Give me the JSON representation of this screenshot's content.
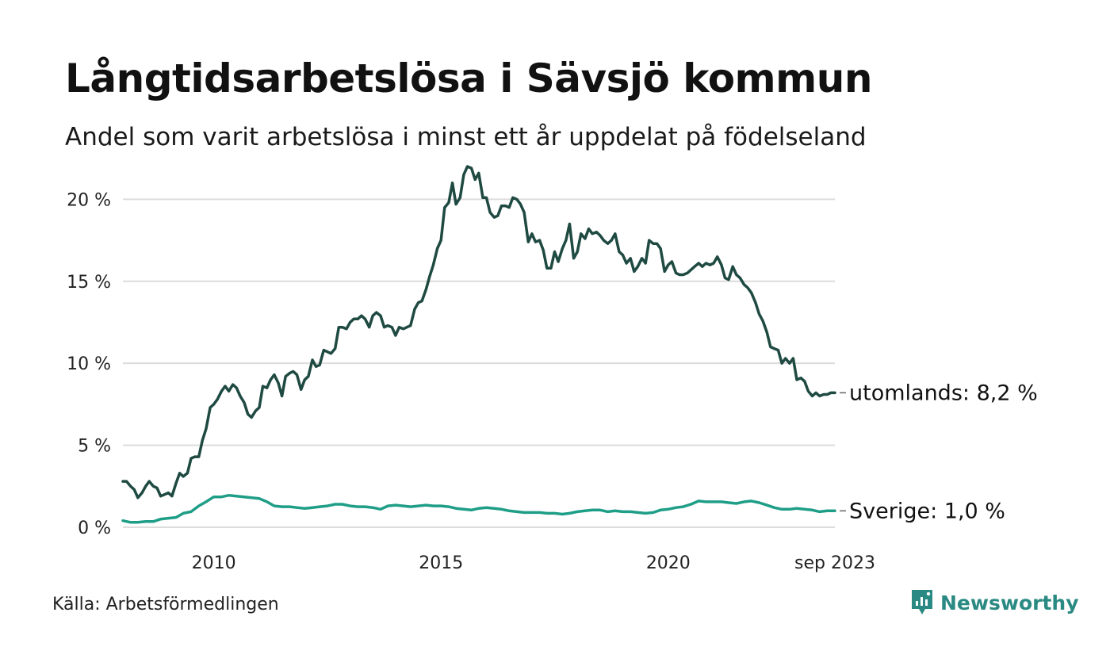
{
  "header": {
    "title": "Långtidsarbetslösa i Sävsjö kommun",
    "subtitle": "Andel som varit arbetslösa i minst ett år uppdelat på födelseland"
  },
  "footer": {
    "source": "Källa: Arbetsförmedlingen",
    "brand": "Newsworthy",
    "brand_color": "#2a8a83"
  },
  "chart_data": {
    "type": "line",
    "title": "Långtidsarbetslösa i Sävsjö kommun",
    "subtitle": "Andel som varit arbetslösa i minst ett år uppdelat på födelseland",
    "xlabel": "",
    "ylabel": "",
    "x_start": 2008.0,
    "x_end": 2023.667,
    "x_ticks": [
      {
        "value": 2010,
        "label": "2010"
      },
      {
        "value": 2015,
        "label": "2015"
      },
      {
        "value": 2020,
        "label": "2020"
      },
      {
        "value": 2023.667,
        "label": "sep 2023"
      }
    ],
    "ylim": [
      0,
      22
    ],
    "y_ticks": [
      {
        "value": 0,
        "label": "0 %"
      },
      {
        "value": 5,
        "label": "5 %"
      },
      {
        "value": 10,
        "label": "10 %"
      },
      {
        "value": 15,
        "label": "15 %"
      },
      {
        "value": 20,
        "label": "20 %"
      }
    ],
    "grid": true,
    "series": [
      {
        "name": "utomlands",
        "end_label": "utomlands: 8,2 %",
        "color": "#1f4a42",
        "points": [
          [
            2008.0,
            2.8
          ],
          [
            2008.08,
            2.8
          ],
          [
            2008.17,
            2.5
          ],
          [
            2008.25,
            2.3
          ],
          [
            2008.33,
            1.8
          ],
          [
            2008.42,
            2.1
          ],
          [
            2008.5,
            2.5
          ],
          [
            2008.58,
            2.8
          ],
          [
            2008.67,
            2.5
          ],
          [
            2008.75,
            2.4
          ],
          [
            2008.83,
            1.9
          ],
          [
            2008.92,
            2.0
          ],
          [
            2009.0,
            2.1
          ],
          [
            2009.08,
            1.9
          ],
          [
            2009.17,
            2.7
          ],
          [
            2009.25,
            3.3
          ],
          [
            2009.33,
            3.1
          ],
          [
            2009.42,
            3.3
          ],
          [
            2009.5,
            4.2
          ],
          [
            2009.58,
            4.3
          ],
          [
            2009.67,
            4.3
          ],
          [
            2009.75,
            5.3
          ],
          [
            2009.83,
            6.0
          ],
          [
            2009.92,
            7.3
          ],
          [
            2010.0,
            7.5
          ],
          [
            2010.08,
            7.8
          ],
          [
            2010.17,
            8.3
          ],
          [
            2010.25,
            8.6
          ],
          [
            2010.33,
            8.3
          ],
          [
            2010.42,
            8.7
          ],
          [
            2010.5,
            8.5
          ],
          [
            2010.58,
            8.0
          ],
          [
            2010.67,
            7.6
          ],
          [
            2010.75,
            6.9
          ],
          [
            2010.83,
            6.7
          ],
          [
            2010.92,
            7.1
          ],
          [
            2011.0,
            7.3
          ],
          [
            2011.08,
            8.6
          ],
          [
            2011.17,
            8.5
          ],
          [
            2011.25,
            9.0
          ],
          [
            2011.33,
            9.3
          ],
          [
            2011.42,
            8.8
          ],
          [
            2011.5,
            8.0
          ],
          [
            2011.58,
            9.2
          ],
          [
            2011.67,
            9.4
          ],
          [
            2011.75,
            9.5
          ],
          [
            2011.83,
            9.3
          ],
          [
            2011.92,
            8.4
          ],
          [
            2012.0,
            9.0
          ],
          [
            2012.08,
            9.2
          ],
          [
            2012.17,
            10.2
          ],
          [
            2012.25,
            9.8
          ],
          [
            2012.33,
            9.9
          ],
          [
            2012.42,
            10.8
          ],
          [
            2012.5,
            10.7
          ],
          [
            2012.58,
            10.6
          ],
          [
            2012.67,
            10.9
          ],
          [
            2012.75,
            12.2
          ],
          [
            2012.83,
            12.2
          ],
          [
            2012.92,
            12.1
          ],
          [
            2013.0,
            12.5
          ],
          [
            2013.08,
            12.7
          ],
          [
            2013.17,
            12.7
          ],
          [
            2013.25,
            12.9
          ],
          [
            2013.33,
            12.7
          ],
          [
            2013.42,
            12.2
          ],
          [
            2013.5,
            12.9
          ],
          [
            2013.58,
            13.1
          ],
          [
            2013.67,
            12.9
          ],
          [
            2013.75,
            12.2
          ],
          [
            2013.83,
            12.3
          ],
          [
            2013.92,
            12.2
          ],
          [
            2014.0,
            11.7
          ],
          [
            2014.08,
            12.2
          ],
          [
            2014.17,
            12.1
          ],
          [
            2014.25,
            12.2
          ],
          [
            2014.33,
            12.3
          ],
          [
            2014.42,
            13.3
          ],
          [
            2014.5,
            13.7
          ],
          [
            2014.58,
            13.8
          ],
          [
            2014.67,
            14.5
          ],
          [
            2014.75,
            15.3
          ],
          [
            2014.83,
            16.0
          ],
          [
            2014.92,
            17.0
          ],
          [
            2015.0,
            17.5
          ],
          [
            2015.08,
            19.5
          ],
          [
            2015.17,
            19.8
          ],
          [
            2015.25,
            21.0
          ],
          [
            2015.33,
            19.7
          ],
          [
            2015.42,
            20.1
          ],
          [
            2015.5,
            21.5
          ],
          [
            2015.58,
            22.0
          ],
          [
            2015.67,
            21.9
          ],
          [
            2015.75,
            21.2
          ],
          [
            2015.83,
            21.6
          ],
          [
            2015.92,
            20.1
          ],
          [
            2016.0,
            20.1
          ],
          [
            2016.08,
            19.2
          ],
          [
            2016.17,
            18.9
          ],
          [
            2016.25,
            19.0
          ],
          [
            2016.33,
            19.6
          ],
          [
            2016.42,
            19.6
          ],
          [
            2016.5,
            19.5
          ],
          [
            2016.58,
            20.1
          ],
          [
            2016.67,
            20.0
          ],
          [
            2016.75,
            19.7
          ],
          [
            2016.83,
            19.2
          ],
          [
            2016.92,
            17.4
          ],
          [
            2017.0,
            17.9
          ],
          [
            2017.08,
            17.4
          ],
          [
            2017.17,
            17.5
          ],
          [
            2017.25,
            16.9
          ],
          [
            2017.33,
            15.8
          ],
          [
            2017.42,
            15.8
          ],
          [
            2017.5,
            16.8
          ],
          [
            2017.58,
            16.2
          ],
          [
            2017.67,
            17.0
          ],
          [
            2017.75,
            17.5
          ],
          [
            2017.83,
            18.5
          ],
          [
            2017.92,
            16.4
          ],
          [
            2018.0,
            16.8
          ],
          [
            2018.08,
            17.9
          ],
          [
            2018.17,
            17.6
          ],
          [
            2018.25,
            18.2
          ],
          [
            2018.33,
            17.9
          ],
          [
            2018.42,
            18.0
          ],
          [
            2018.5,
            17.8
          ],
          [
            2018.58,
            17.5
          ],
          [
            2018.67,
            17.3
          ],
          [
            2018.75,
            17.5
          ],
          [
            2018.83,
            17.9
          ],
          [
            2018.92,
            16.8
          ],
          [
            2019.0,
            16.6
          ],
          [
            2019.08,
            16.1
          ],
          [
            2019.17,
            16.4
          ],
          [
            2019.25,
            15.6
          ],
          [
            2019.33,
            15.9
          ],
          [
            2019.42,
            16.4
          ],
          [
            2019.5,
            16.1
          ],
          [
            2019.58,
            17.5
          ],
          [
            2019.67,
            17.3
          ],
          [
            2019.75,
            17.3
          ],
          [
            2019.83,
            17.0
          ],
          [
            2019.92,
            15.6
          ],
          [
            2020.0,
            16.0
          ],
          [
            2020.08,
            16.2
          ],
          [
            2020.17,
            15.5
          ],
          [
            2020.25,
            15.4
          ],
          [
            2020.33,
            15.4
          ],
          [
            2020.42,
            15.5
          ],
          [
            2020.5,
            15.7
          ],
          [
            2020.58,
            15.9
          ],
          [
            2020.67,
            16.1
          ],
          [
            2020.75,
            15.9
          ],
          [
            2020.83,
            16.1
          ],
          [
            2020.92,
            16.0
          ],
          [
            2021.0,
            16.1
          ],
          [
            2021.08,
            16.5
          ],
          [
            2021.17,
            16.0
          ],
          [
            2021.25,
            15.2
          ],
          [
            2021.33,
            15.1
          ],
          [
            2021.42,
            15.9
          ],
          [
            2021.5,
            15.4
          ],
          [
            2021.58,
            15.2
          ],
          [
            2021.67,
            14.8
          ],
          [
            2021.75,
            14.6
          ],
          [
            2021.83,
            14.3
          ],
          [
            2021.92,
            13.7
          ],
          [
            2022.0,
            13.0
          ],
          [
            2022.08,
            12.6
          ],
          [
            2022.17,
            11.9
          ],
          [
            2022.25,
            11.0
          ],
          [
            2022.33,
            10.9
          ],
          [
            2022.42,
            10.8
          ],
          [
            2022.5,
            10.0
          ],
          [
            2022.58,
            10.3
          ],
          [
            2022.67,
            10.0
          ],
          [
            2022.75,
            10.3
          ],
          [
            2022.83,
            9.0
          ],
          [
            2022.92,
            9.1
          ],
          [
            2023.0,
            8.9
          ],
          [
            2023.08,
            8.3
          ],
          [
            2023.17,
            8.0
          ],
          [
            2023.25,
            8.2
          ],
          [
            2023.33,
            8.0
          ],
          [
            2023.42,
            8.1
          ],
          [
            2023.5,
            8.1
          ],
          [
            2023.58,
            8.2
          ],
          [
            2023.667,
            8.2
          ]
        ]
      },
      {
        "name": "Sverige",
        "end_label": "Sverige: 1,0 %",
        "color": "#1f9e87",
        "points": [
          [
            2008.0,
            0.4
          ],
          [
            2008.17,
            0.3
          ],
          [
            2008.33,
            0.3
          ],
          [
            2008.5,
            0.35
          ],
          [
            2008.67,
            0.35
          ],
          [
            2008.83,
            0.5
          ],
          [
            2009.0,
            0.55
          ],
          [
            2009.17,
            0.6
          ],
          [
            2009.33,
            0.85
          ],
          [
            2009.5,
            0.95
          ],
          [
            2009.67,
            1.3
          ],
          [
            2009.83,
            1.55
          ],
          [
            2010.0,
            1.85
          ],
          [
            2010.17,
            1.85
          ],
          [
            2010.33,
            1.95
          ],
          [
            2010.5,
            1.9
          ],
          [
            2010.67,
            1.85
          ],
          [
            2010.83,
            1.8
          ],
          [
            2011.0,
            1.75
          ],
          [
            2011.17,
            1.55
          ],
          [
            2011.33,
            1.3
          ],
          [
            2011.5,
            1.25
          ],
          [
            2011.67,
            1.25
          ],
          [
            2011.83,
            1.2
          ],
          [
            2012.0,
            1.15
          ],
          [
            2012.17,
            1.2
          ],
          [
            2012.33,
            1.25
          ],
          [
            2012.5,
            1.3
          ],
          [
            2012.67,
            1.4
          ],
          [
            2012.83,
            1.4
          ],
          [
            2013.0,
            1.3
          ],
          [
            2013.17,
            1.25
          ],
          [
            2013.33,
            1.25
          ],
          [
            2013.5,
            1.2
          ],
          [
            2013.67,
            1.1
          ],
          [
            2013.83,
            1.3
          ],
          [
            2014.0,
            1.35
          ],
          [
            2014.17,
            1.3
          ],
          [
            2014.33,
            1.25
          ],
          [
            2014.5,
            1.3
          ],
          [
            2014.67,
            1.35
          ],
          [
            2014.83,
            1.3
          ],
          [
            2015.0,
            1.3
          ],
          [
            2015.17,
            1.25
          ],
          [
            2015.33,
            1.15
          ],
          [
            2015.5,
            1.1
          ],
          [
            2015.67,
            1.05
          ],
          [
            2015.83,
            1.15
          ],
          [
            2016.0,
            1.2
          ],
          [
            2016.17,
            1.15
          ],
          [
            2016.33,
            1.1
          ],
          [
            2016.5,
            1.0
          ],
          [
            2016.67,
            0.95
          ],
          [
            2016.83,
            0.9
          ],
          [
            2017.0,
            0.9
          ],
          [
            2017.17,
            0.9
          ],
          [
            2017.33,
            0.85
          ],
          [
            2017.5,
            0.85
          ],
          [
            2017.67,
            0.8
          ],
          [
            2017.83,
            0.85
          ],
          [
            2018.0,
            0.95
          ],
          [
            2018.17,
            1.0
          ],
          [
            2018.33,
            1.05
          ],
          [
            2018.5,
            1.05
          ],
          [
            2018.67,
            0.95
          ],
          [
            2018.83,
            1.0
          ],
          [
            2019.0,
            0.95
          ],
          [
            2019.17,
            0.95
          ],
          [
            2019.33,
            0.9
          ],
          [
            2019.5,
            0.85
          ],
          [
            2019.67,
            0.9
          ],
          [
            2019.83,
            1.05
          ],
          [
            2020.0,
            1.1
          ],
          [
            2020.17,
            1.2
          ],
          [
            2020.33,
            1.25
          ],
          [
            2020.5,
            1.4
          ],
          [
            2020.67,
            1.6
          ],
          [
            2020.83,
            1.55
          ],
          [
            2021.0,
            1.55
          ],
          [
            2021.17,
            1.55
          ],
          [
            2021.33,
            1.5
          ],
          [
            2021.5,
            1.45
          ],
          [
            2021.67,
            1.55
          ],
          [
            2021.83,
            1.6
          ],
          [
            2022.0,
            1.5
          ],
          [
            2022.17,
            1.35
          ],
          [
            2022.33,
            1.2
          ],
          [
            2022.5,
            1.1
          ],
          [
            2022.67,
            1.1
          ],
          [
            2022.83,
            1.15
          ],
          [
            2023.0,
            1.1
          ],
          [
            2023.17,
            1.05
          ],
          [
            2023.33,
            0.95
          ],
          [
            2023.5,
            1.0
          ],
          [
            2023.667,
            1.0
          ]
        ]
      }
    ]
  }
}
